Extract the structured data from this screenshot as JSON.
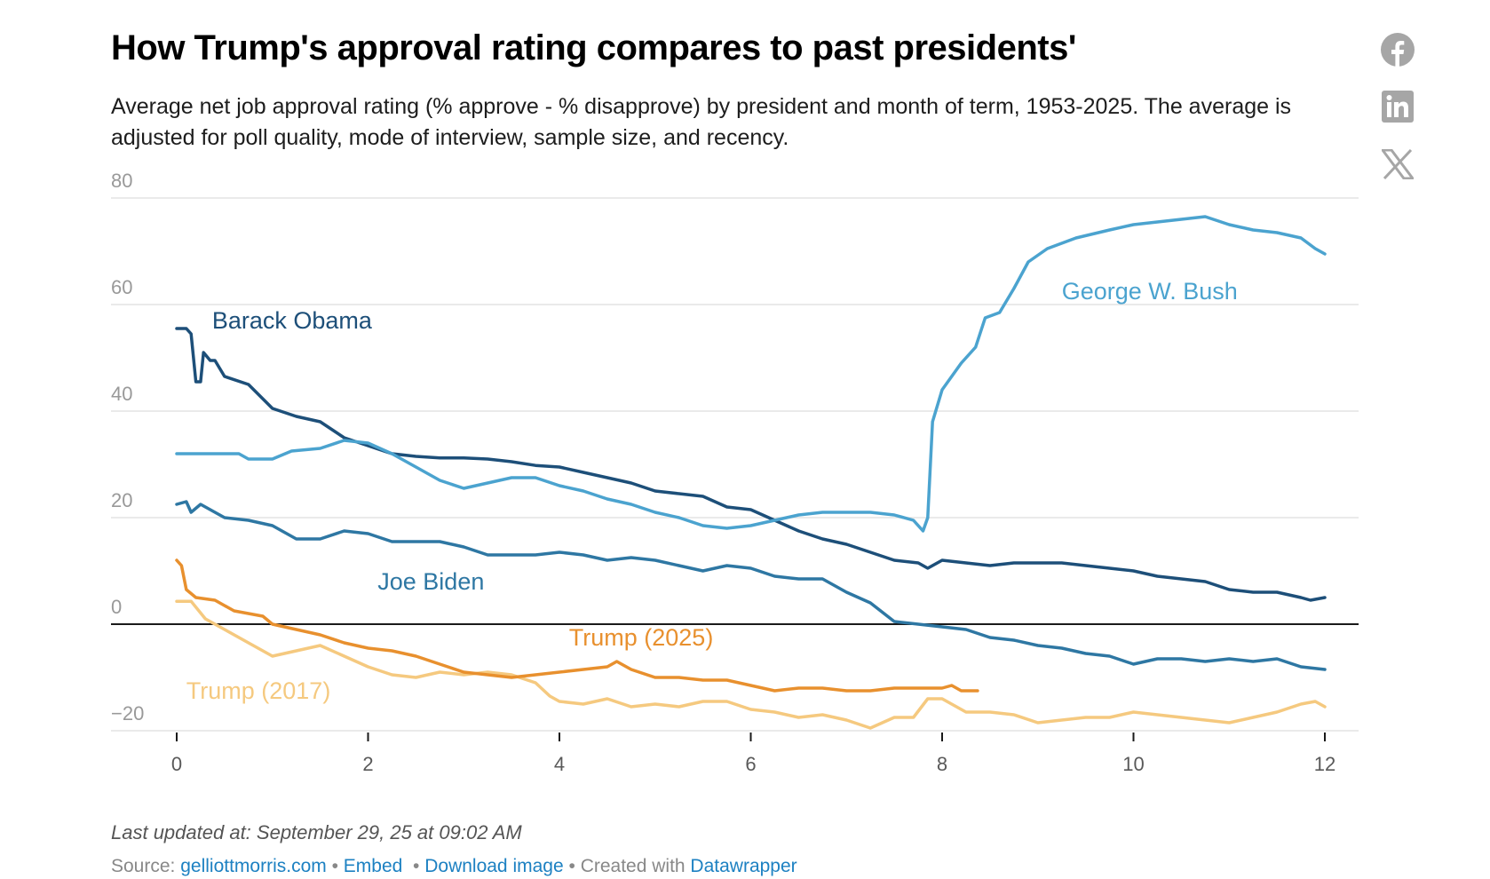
{
  "header": {
    "title": "How Trump's approval rating compares to past presidents'",
    "subtitle": "Average net job approval rating (% approve - % disapprove) by president and month of term, 1953-2025. The average is adjusted for poll quality, mode of interview, sample size, and recency."
  },
  "share": [
    {
      "icon": "facebook-icon",
      "label": "Share on Facebook"
    },
    {
      "icon": "linkedin-icon",
      "label": "Share on LinkedIn"
    },
    {
      "icon": "x-icon",
      "label": "Share on X"
    }
  ],
  "chart_data": {
    "type": "line",
    "title": "How Trump's approval rating compares to past presidents'",
    "xlabel": "",
    "ylabel": "",
    "xlim": [
      0,
      12
    ],
    "ylim": [
      -20,
      80
    ],
    "x_ticks": [
      "0",
      "2",
      "4",
      "6",
      "8",
      "10",
      "12"
    ],
    "x_tick_values": [
      0,
      2,
      4,
      6,
      8,
      10,
      12
    ],
    "y_ticks": [
      "80",
      "60",
      "40",
      "20",
      "0",
      "−20"
    ],
    "y_tick_values": [
      80,
      60,
      40,
      20,
      0,
      -20
    ],
    "grid": true,
    "legend": "inline labels",
    "series": [
      {
        "name": "George W. Bush",
        "color": "#4ba3cf",
        "label_at": [
          9.25,
          61
        ],
        "points": [
          [
            0,
            32
          ],
          [
            0.5,
            32
          ],
          [
            0.65,
            32
          ],
          [
            0.75,
            31
          ],
          [
            1.0,
            31
          ],
          [
            1.2,
            32.5
          ],
          [
            1.5,
            33
          ],
          [
            1.75,
            34.5
          ],
          [
            2.0,
            34
          ],
          [
            2.25,
            32
          ],
          [
            2.5,
            29.5
          ],
          [
            2.75,
            27
          ],
          [
            3.0,
            25.5
          ],
          [
            3.25,
            26.5
          ],
          [
            3.5,
            27.5
          ],
          [
            3.75,
            27.5
          ],
          [
            4.0,
            26
          ],
          [
            4.25,
            25
          ],
          [
            4.5,
            23.5
          ],
          [
            4.75,
            22.5
          ],
          [
            5.0,
            21
          ],
          [
            5.25,
            20
          ],
          [
            5.5,
            18.5
          ],
          [
            5.75,
            18
          ],
          [
            6.0,
            18.5
          ],
          [
            6.25,
            19.5
          ],
          [
            6.5,
            20.5
          ],
          [
            6.75,
            21
          ],
          [
            7.0,
            21
          ],
          [
            7.25,
            21
          ],
          [
            7.5,
            20.5
          ],
          [
            7.7,
            19.5
          ],
          [
            7.8,
            17.5
          ],
          [
            7.85,
            20
          ],
          [
            7.9,
            38
          ],
          [
            8.0,
            44
          ],
          [
            8.2,
            49
          ],
          [
            8.35,
            52
          ],
          [
            8.45,
            57.5
          ],
          [
            8.6,
            58.5
          ],
          [
            8.75,
            63
          ],
          [
            8.9,
            68
          ],
          [
            9.1,
            70.5
          ],
          [
            9.4,
            72.5
          ],
          [
            9.75,
            74
          ],
          [
            10.0,
            75
          ],
          [
            10.25,
            75.5
          ],
          [
            10.5,
            76
          ],
          [
            10.75,
            76.5
          ],
          [
            11.0,
            75
          ],
          [
            11.25,
            74
          ],
          [
            11.5,
            73.5
          ],
          [
            11.75,
            72.5
          ],
          [
            11.9,
            70.5
          ],
          [
            12,
            69.5
          ]
        ]
      },
      {
        "name": "Barack Obama",
        "color": "#1d4f79",
        "label_at": [
          0.37,
          55.5
        ],
        "points": [
          [
            0,
            55.5
          ],
          [
            0.1,
            55.5
          ],
          [
            0.15,
            54.5
          ],
          [
            0.2,
            45.5
          ],
          [
            0.25,
            45.5
          ],
          [
            0.28,
            51
          ],
          [
            0.35,
            49.5
          ],
          [
            0.4,
            49.5
          ],
          [
            0.5,
            46.5
          ],
          [
            0.75,
            45
          ],
          [
            1.0,
            40.5
          ],
          [
            1.25,
            39
          ],
          [
            1.5,
            38
          ],
          [
            1.75,
            35
          ],
          [
            2.0,
            33.5
          ],
          [
            2.25,
            32
          ],
          [
            2.5,
            31.5
          ],
          [
            2.75,
            31.2
          ],
          [
            3.0,
            31.2
          ],
          [
            3.25,
            31
          ],
          [
            3.5,
            30.5
          ],
          [
            3.75,
            29.8
          ],
          [
            4.0,
            29.5
          ],
          [
            4.25,
            28.5
          ],
          [
            4.5,
            27.5
          ],
          [
            4.75,
            26.5
          ],
          [
            5.0,
            25
          ],
          [
            5.25,
            24.5
          ],
          [
            5.5,
            24
          ],
          [
            5.75,
            22
          ],
          [
            6.0,
            21.5
          ],
          [
            6.25,
            19.5
          ],
          [
            6.5,
            17.5
          ],
          [
            6.75,
            16
          ],
          [
            7.0,
            15
          ],
          [
            7.25,
            13.5
          ],
          [
            7.5,
            12
          ],
          [
            7.75,
            11.5
          ],
          [
            7.85,
            10.5
          ],
          [
            8.0,
            12
          ],
          [
            8.25,
            11.5
          ],
          [
            8.5,
            11
          ],
          [
            8.75,
            11.5
          ],
          [
            9.0,
            11.5
          ],
          [
            9.25,
            11.5
          ],
          [
            9.5,
            11
          ],
          [
            9.75,
            10.5
          ],
          [
            10.0,
            10
          ],
          [
            10.25,
            9
          ],
          [
            10.5,
            8.5
          ],
          [
            10.75,
            8
          ],
          [
            11.0,
            6.5
          ],
          [
            11.25,
            6
          ],
          [
            11.5,
            6
          ],
          [
            11.75,
            5
          ],
          [
            11.85,
            4.5
          ],
          [
            12,
            5
          ]
        ]
      },
      {
        "name": "Joe Biden",
        "color": "#2e77a3",
        "label_at": [
          2.1,
          6.5
        ],
        "points": [
          [
            0,
            22.5
          ],
          [
            0.1,
            23
          ],
          [
            0.15,
            21
          ],
          [
            0.25,
            22.5
          ],
          [
            0.5,
            20
          ],
          [
            0.75,
            19.5
          ],
          [
            1.0,
            18.5
          ],
          [
            1.25,
            16
          ],
          [
            1.5,
            16
          ],
          [
            1.75,
            17.5
          ],
          [
            2.0,
            17
          ],
          [
            2.25,
            15.5
          ],
          [
            2.5,
            15.5
          ],
          [
            2.75,
            15.5
          ],
          [
            3.0,
            14.5
          ],
          [
            3.25,
            13
          ],
          [
            3.5,
            13
          ],
          [
            3.75,
            13
          ],
          [
            4.0,
            13.5
          ],
          [
            4.25,
            13
          ],
          [
            4.5,
            12
          ],
          [
            4.75,
            12.5
          ],
          [
            5.0,
            12
          ],
          [
            5.25,
            11
          ],
          [
            5.5,
            10
          ],
          [
            5.75,
            11
          ],
          [
            6.0,
            10.5
          ],
          [
            6.25,
            9
          ],
          [
            6.5,
            8.5
          ],
          [
            6.75,
            8.5
          ],
          [
            7.0,
            6
          ],
          [
            7.25,
            4
          ],
          [
            7.5,
            0.5
          ],
          [
            7.75,
            0
          ],
          [
            8.0,
            -0.5
          ],
          [
            8.25,
            -1
          ],
          [
            8.5,
            -2.5
          ],
          [
            8.75,
            -3
          ],
          [
            9.0,
            -4
          ],
          [
            9.25,
            -4.5
          ],
          [
            9.5,
            -5.5
          ],
          [
            9.75,
            -6
          ],
          [
            10.0,
            -7.5
          ],
          [
            10.25,
            -6.5
          ],
          [
            10.5,
            -6.5
          ],
          [
            10.75,
            -7
          ],
          [
            11.0,
            -6.5
          ],
          [
            11.25,
            -7
          ],
          [
            11.5,
            -6.5
          ],
          [
            11.75,
            -8
          ],
          [
            12,
            -8.5
          ]
        ]
      },
      {
        "name": "Trump (2025)",
        "color": "#e8902e",
        "label_at": [
          4.1,
          -4
        ],
        "points": [
          [
            0,
            12
          ],
          [
            0.05,
            11
          ],
          [
            0.1,
            6.5
          ],
          [
            0.2,
            5
          ],
          [
            0.4,
            4.5
          ],
          [
            0.6,
            2.5
          ],
          [
            0.75,
            2
          ],
          [
            0.9,
            1.5
          ],
          [
            1.0,
            0
          ],
          [
            1.25,
            -1
          ],
          [
            1.5,
            -2
          ],
          [
            1.75,
            -3.5
          ],
          [
            2.0,
            -4.5
          ],
          [
            2.25,
            -5
          ],
          [
            2.5,
            -6
          ],
          [
            2.75,
            -7.5
          ],
          [
            3.0,
            -9
          ],
          [
            3.25,
            -9.5
          ],
          [
            3.5,
            -10
          ],
          [
            3.75,
            -9.5
          ],
          [
            4.0,
            -9
          ],
          [
            4.25,
            -8.5
          ],
          [
            4.5,
            -8
          ],
          [
            4.6,
            -7
          ],
          [
            4.75,
            -8.5
          ],
          [
            5.0,
            -10
          ],
          [
            5.25,
            -10
          ],
          [
            5.5,
            -10.5
          ],
          [
            5.75,
            -10.5
          ],
          [
            6.0,
            -11.5
          ],
          [
            6.25,
            -12.5
          ],
          [
            6.5,
            -12
          ],
          [
            6.75,
            -12
          ],
          [
            7.0,
            -12.5
          ],
          [
            7.25,
            -12.5
          ],
          [
            7.5,
            -12
          ],
          [
            7.75,
            -12
          ],
          [
            8.0,
            -12
          ],
          [
            8.1,
            -11.5
          ],
          [
            8.2,
            -12.5
          ],
          [
            8.37,
            -12.5
          ]
        ]
      },
      {
        "name": "Trump (2017)",
        "color": "#f5c97f",
        "label_at": [
          0.1,
          -14
        ],
        "points": [
          [
            0,
            4.3
          ],
          [
            0.15,
            4.3
          ],
          [
            0.3,
            1
          ],
          [
            0.5,
            -1
          ],
          [
            0.75,
            -3.5
          ],
          [
            1.0,
            -6
          ],
          [
            1.25,
            -5
          ],
          [
            1.5,
            -4
          ],
          [
            1.75,
            -6
          ],
          [
            2.0,
            -8
          ],
          [
            2.25,
            -9.5
          ],
          [
            2.5,
            -10
          ],
          [
            2.75,
            -9
          ],
          [
            3.0,
            -9.5
          ],
          [
            3.25,
            -9
          ],
          [
            3.5,
            -9.5
          ],
          [
            3.75,
            -11
          ],
          [
            3.9,
            -13.5
          ],
          [
            4.0,
            -14.5
          ],
          [
            4.25,
            -15
          ],
          [
            4.5,
            -14
          ],
          [
            4.75,
            -15.5
          ],
          [
            5.0,
            -15
          ],
          [
            5.25,
            -15.5
          ],
          [
            5.5,
            -14.5
          ],
          [
            5.75,
            -14.5
          ],
          [
            6.0,
            -16
          ],
          [
            6.25,
            -16.5
          ],
          [
            6.5,
            -17.5
          ],
          [
            6.75,
            -17
          ],
          [
            7.0,
            -18
          ],
          [
            7.25,
            -19.5
          ],
          [
            7.5,
            -17.5
          ],
          [
            7.7,
            -17.5
          ],
          [
            7.85,
            -14
          ],
          [
            8.0,
            -14
          ],
          [
            8.25,
            -16.5
          ],
          [
            8.5,
            -16.5
          ],
          [
            8.75,
            -17
          ],
          [
            9.0,
            -18.5
          ],
          [
            9.25,
            -18
          ],
          [
            9.5,
            -17.5
          ],
          [
            9.75,
            -17.5
          ],
          [
            10.0,
            -16.5
          ],
          [
            10.25,
            -17
          ],
          [
            10.5,
            -17.5
          ],
          [
            10.75,
            -18
          ],
          [
            11.0,
            -18.5
          ],
          [
            11.25,
            -17.5
          ],
          [
            11.5,
            -16.5
          ],
          [
            11.75,
            -15
          ],
          [
            11.9,
            -14.5
          ],
          [
            12,
            -15.5
          ]
        ]
      }
    ]
  },
  "footer": {
    "updated": "Last updated at: September 29, 25 at 09:02 AM",
    "source_prefix": "Source: ",
    "source_link": "gelliottmorris.com",
    "separator": " • ",
    "embed": "Embed",
    "download": "Download image",
    "created_prefix": "Created with ",
    "created_link": "Datawrapper"
  }
}
